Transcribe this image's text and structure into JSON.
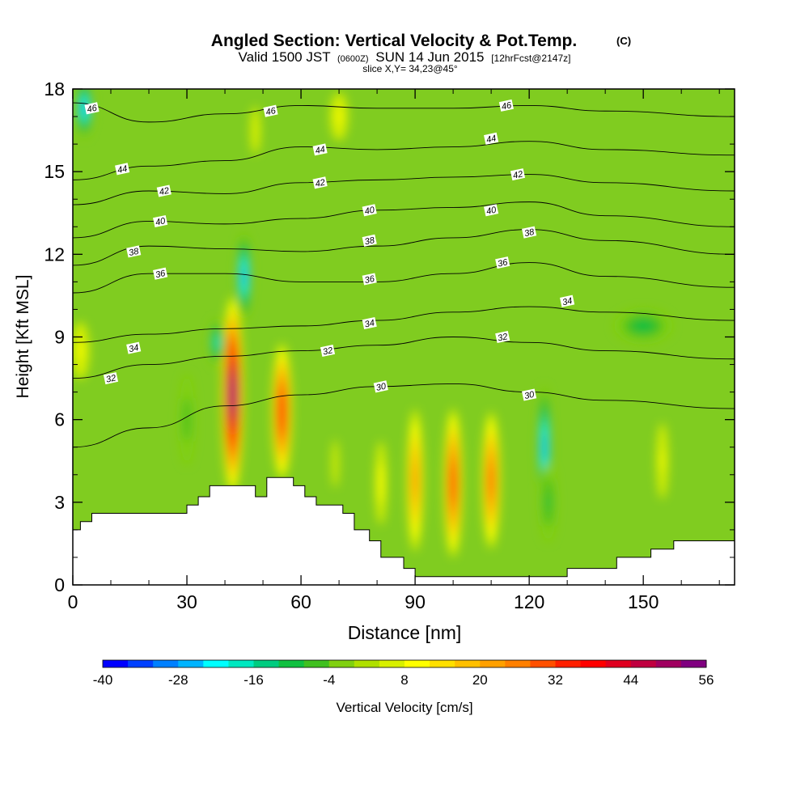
{
  "chart_data": {
    "type": "contour",
    "title": "Angled Section: Vertical Velocity & Pot.Temp.",
    "title_units": "(C)",
    "subtitle_valid": "Valid 1500 JST",
    "subtitle_utc": "(0600Z)",
    "subtitle_date": "SUN 14 Jun 2015",
    "subtitle_fcst": "[12hrFcst@2147z]",
    "slice_label": "slice X,Y= 34,23@45°",
    "xlabel": "Distance [nm]",
    "ylabel": "Height [Kft MSL]",
    "xlim": [
      0,
      174
    ],
    "ylim": [
      0,
      18
    ],
    "xticks": [
      0,
      30,
      60,
      90,
      120,
      150
    ],
    "yticks": [
      0,
      3,
      6,
      9,
      12,
      15,
      18
    ],
    "colorbar": {
      "label": "Vertical Velocity [cm/s]",
      "min": -40,
      "max": 56,
      "step": 4,
      "tick_labels": [
        "-40",
        "-28",
        "-16",
        "-4",
        "8",
        "20",
        "32",
        "44",
        "56"
      ],
      "colors": [
        "#0000ff",
        "#0040ff",
        "#0080ff",
        "#00b4ff",
        "#00ffff",
        "#00e8c0",
        "#00cc80",
        "#10c040",
        "#40c020",
        "#80d010",
        "#b0e000",
        "#d8f000",
        "#ffff00",
        "#ffe000",
        "#ffc000",
        "#ffa000",
        "#ff8000",
        "#ff5000",
        "#ff2000",
        "#ff0000",
        "#e00020",
        "#c00040",
        "#a00060",
        "#800080"
      ]
    },
    "theta_contours": [
      {
        "label": "30",
        "points": [
          [
            0,
            5.0
          ],
          [
            20,
            5.7
          ],
          [
            40,
            6.5
          ],
          [
            60,
            6.9
          ],
          [
            80,
            7.2
          ],
          [
            100,
            7.3
          ],
          [
            120,
            7.0
          ],
          [
            140,
            6.7
          ],
          [
            174,
            6.4
          ]
        ]
      },
      {
        "label": "32",
        "points": [
          [
            0,
            7.5
          ],
          [
            20,
            8.0
          ],
          [
            40,
            8.3
          ],
          [
            60,
            8.5
          ],
          [
            80,
            8.7
          ],
          [
            100,
            9.0
          ],
          [
            120,
            8.8
          ],
          [
            140,
            8.5
          ],
          [
            174,
            8.2
          ]
        ]
      },
      {
        "label": "34",
        "points": [
          [
            0,
            8.8
          ],
          [
            20,
            9.1
          ],
          [
            40,
            9.3
          ],
          [
            60,
            9.4
          ],
          [
            80,
            9.6
          ],
          [
            100,
            9.9
          ],
          [
            120,
            10.1
          ],
          [
            140,
            9.9
          ],
          [
            174,
            9.6
          ]
        ]
      },
      {
        "label": "36",
        "points": [
          [
            0,
            10.6
          ],
          [
            20,
            11.3
          ],
          [
            40,
            11.3
          ],
          [
            60,
            11.0
          ],
          [
            80,
            11.0
          ],
          [
            100,
            11.3
          ],
          [
            120,
            11.7
          ],
          [
            140,
            11.2
          ],
          [
            174,
            10.8
          ]
        ]
      },
      {
        "label": "38",
        "points": [
          [
            0,
            11.6
          ],
          [
            20,
            12.3
          ],
          [
            40,
            12.2
          ],
          [
            60,
            12.1
          ],
          [
            80,
            12.3
          ],
          [
            100,
            12.6
          ],
          [
            120,
            12.9
          ],
          [
            140,
            12.5
          ],
          [
            174,
            12.0
          ]
        ]
      },
      {
        "label": "40",
        "points": [
          [
            0,
            12.6
          ],
          [
            20,
            13.2
          ],
          [
            40,
            13.1
          ],
          [
            60,
            13.3
          ],
          [
            80,
            13.6
          ],
          [
            100,
            13.7
          ],
          [
            120,
            13.9
          ],
          [
            140,
            13.4
          ],
          [
            174,
            13.0
          ]
        ]
      },
      {
        "label": "42",
        "points": [
          [
            0,
            13.8
          ],
          [
            20,
            14.3
          ],
          [
            40,
            14.2
          ],
          [
            60,
            14.6
          ],
          [
            80,
            14.7
          ],
          [
            100,
            14.8
          ],
          [
            120,
            14.9
          ],
          [
            140,
            14.6
          ],
          [
            174,
            14.3
          ]
        ]
      },
      {
        "label": "44",
        "points": [
          [
            0,
            14.7
          ],
          [
            20,
            15.2
          ],
          [
            40,
            15.4
          ],
          [
            60,
            15.9
          ],
          [
            80,
            15.8
          ],
          [
            100,
            15.9
          ],
          [
            120,
            16.1
          ],
          [
            140,
            15.8
          ],
          [
            174,
            15.6
          ]
        ]
      },
      {
        "label": "46",
        "points": [
          [
            0,
            17.5
          ],
          [
            20,
            16.8
          ],
          [
            40,
            17.1
          ],
          [
            60,
            17.4
          ],
          [
            80,
            17.3
          ],
          [
            100,
            17.3
          ],
          [
            120,
            17.4
          ],
          [
            140,
            17.2
          ],
          [
            174,
            17.0
          ]
        ]
      }
    ],
    "theta_label_positions": [
      {
        "label": "46",
        "x": 5,
        "y": 17.3
      },
      {
        "label": "46",
        "x": 52,
        "y": 17.2
      },
      {
        "label": "46",
        "x": 114,
        "y": 17.4
      },
      {
        "label": "44",
        "x": 13,
        "y": 15.1
      },
      {
        "label": "44",
        "x": 65,
        "y": 15.8
      },
      {
        "label": "44",
        "x": 110,
        "y": 16.2
      },
      {
        "label": "42",
        "x": 24,
        "y": 14.3
      },
      {
        "label": "42",
        "x": 65,
        "y": 14.6
      },
      {
        "label": "42",
        "x": 117,
        "y": 14.9
      },
      {
        "label": "40",
        "x": 23,
        "y": 13.2
      },
      {
        "label": "40",
        "x": 78,
        "y": 13.6
      },
      {
        "label": "40",
        "x": 110,
        "y": 13.6
      },
      {
        "label": "38",
        "x": 16,
        "y": 12.1
      },
      {
        "label": "38",
        "x": 78,
        "y": 12.5
      },
      {
        "label": "38",
        "x": 120,
        "y": 12.8
      },
      {
        "label": "36",
        "x": 23,
        "y": 11.3
      },
      {
        "label": "36",
        "x": 78,
        "y": 11.1
      },
      {
        "label": "36",
        "x": 113,
        "y": 11.7
      },
      {
        "label": "34",
        "x": 16,
        "y": 8.6
      },
      {
        "label": "34",
        "x": 78,
        "y": 9.5
      },
      {
        "label": "34",
        "x": 130,
        "y": 10.3
      },
      {
        "label": "32",
        "x": 10,
        "y": 7.5
      },
      {
        "label": "32",
        "x": 67,
        "y": 8.5
      },
      {
        "label": "32",
        "x": 113,
        "y": 9.0
      },
      {
        "label": "30",
        "x": 81,
        "y": 7.2
      },
      {
        "label": "30",
        "x": 120,
        "y": 6.9
      }
    ],
    "vertical_velocity_cells": [
      {
        "x": 42,
        "y": 6.9,
        "peak": 56,
        "rx": 3,
        "ry": 3.8
      },
      {
        "x": 55,
        "y": 6.3,
        "peak": 40,
        "rx": 2.8,
        "ry": 2.7
      },
      {
        "x": 100,
        "y": 3.7,
        "peak": 36,
        "rx": 2.6,
        "ry": 3.0
      },
      {
        "x": 110,
        "y": 3.8,
        "peak": 32,
        "rx": 2.6,
        "ry": 2.8
      },
      {
        "x": 90,
        "y": 3.8,
        "peak": 26,
        "rx": 2.4,
        "ry": 3.0
      },
      {
        "x": 81,
        "y": 3.7,
        "peak": 12,
        "rx": 2.2,
        "ry": 2.3
      },
      {
        "x": 69,
        "y": 4.4,
        "peak": 8,
        "rx": 2.0,
        "ry": 2.0
      },
      {
        "x": 155,
        "y": 4.5,
        "peak": 10,
        "rx": 2.6,
        "ry": 2.4
      },
      {
        "x": 2,
        "y": 8.5,
        "peak": 10,
        "rx": 4,
        "ry": 1.8
      },
      {
        "x": 70,
        "y": 17,
        "peak": 10,
        "rx": 4,
        "ry": 1.5
      },
      {
        "x": 48,
        "y": 16.5,
        "peak": 8,
        "rx": 3,
        "ry": 2.0
      },
      {
        "x": 45,
        "y": 11.2,
        "peak": -28,
        "rx": 2.2,
        "ry": 1.8
      },
      {
        "x": 124,
        "y": 5.0,
        "peak": -28,
        "rx": 2.0,
        "ry": 2.5
      },
      {
        "x": 3,
        "y": 17.3,
        "peak": -28,
        "rx": 2.5,
        "ry": 1.2
      },
      {
        "x": 38,
        "y": 8.8,
        "peak": -20,
        "rx": 2.5,
        "ry": 1.0
      },
      {
        "x": 150,
        "y": 9.4,
        "peak": -12,
        "rx": 10,
        "ry": 0.8
      },
      {
        "x": 30,
        "y": 6.0,
        "peak": -8,
        "rx": 3,
        "ry": 2.5
      },
      {
        "x": 125,
        "y": 3.0,
        "peak": -10,
        "rx": 3,
        "ry": 2.0
      }
    ],
    "terrain_steps": [
      [
        0,
        2
      ],
      [
        2,
        2
      ],
      [
        2,
        2.3
      ],
      [
        5,
        2.3
      ],
      [
        5,
        2.6
      ],
      [
        30,
        2.6
      ],
      [
        30,
        2.9
      ],
      [
        33,
        2.9
      ],
      [
        33,
        3.2
      ],
      [
        36,
        3.2
      ],
      [
        36,
        3.6
      ],
      [
        48,
        3.6
      ],
      [
        48,
        3.2
      ],
      [
        51,
        3.2
      ],
      [
        51,
        3.9
      ],
      [
        58,
        3.9
      ],
      [
        58,
        3.6
      ],
      [
        61,
        3.6
      ],
      [
        61,
        3.2
      ],
      [
        64,
        3.2
      ],
      [
        64,
        2.9
      ],
      [
        71,
        2.9
      ],
      [
        71,
        2.6
      ],
      [
        74,
        2.6
      ],
      [
        74,
        2.0
      ],
      [
        78,
        2.0
      ],
      [
        78,
        1.6
      ],
      [
        81,
        1.6
      ],
      [
        81,
        1.0
      ],
      [
        87,
        1.0
      ],
      [
        87,
        0.6
      ],
      [
        90,
        0.6
      ],
      [
        90,
        0.3
      ],
      [
        130,
        0.3
      ],
      [
        130,
        0.6
      ],
      [
        143,
        0.6
      ],
      [
        143,
        1.0
      ],
      [
        152,
        1.0
      ],
      [
        152,
        1.3
      ],
      [
        158,
        1.3
      ],
      [
        158,
        1.6
      ],
      [
        174,
        1.6
      ],
      [
        174,
        0
      ],
      [
        0,
        0
      ]
    ],
    "grid": false
  }
}
